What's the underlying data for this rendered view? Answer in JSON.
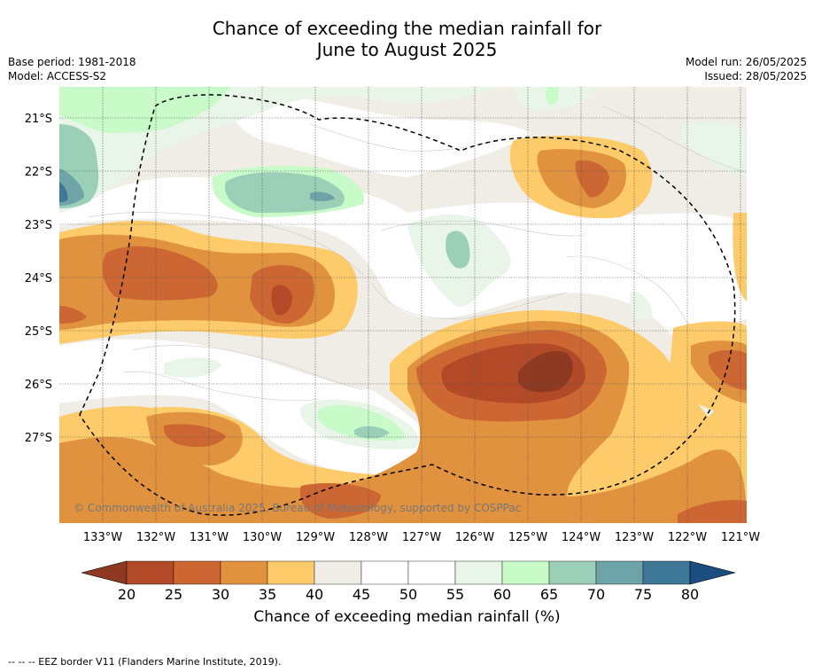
{
  "title": {
    "line1": "Chance of exceeding the median rainfall for",
    "line2": "June to August 2025"
  },
  "meta": {
    "base_period": "Base period: 1981-2018",
    "model": "Model: ACCESS-S2",
    "model_run": "Model run: 26/05/2025",
    "issued": "Issued: 28/05/2025"
  },
  "map": {
    "lat_labels": [
      "21°S",
      "22°S",
      "23°S",
      "24°S",
      "25°S",
      "26°S",
      "27°S"
    ],
    "lon_labels": [
      "133°W",
      "132°W",
      "131°W",
      "130°W",
      "129°W",
      "128°W",
      "127°W",
      "126°W",
      "125°W",
      "124°W",
      "123°W",
      "122°W",
      "121°W"
    ],
    "copyright": "© Commonwealth of Australia 2025, Bureau of Meteorology, supported by COSPPac"
  },
  "colorbar": {
    "ticks": [
      "20",
      "25",
      "30",
      "35",
      "40",
      "45",
      "50",
      "55",
      "60",
      "65",
      "70",
      "75",
      "80"
    ],
    "colors": [
      "#b24a28",
      "#cc6633",
      "#e0923f",
      "#fecb6a",
      "#f0ece6",
      "#ffffff",
      "#ffffff",
      "#e8f5e8",
      "#c8fbc8",
      "#9ccfb8",
      "#6ea3a8",
      "#3e7896"
    ],
    "under_color": "#8e3a22",
    "over_color": "#1a4d80",
    "label": "Chance of exceeding median rainfall (%)"
  },
  "footer": {
    "eez_note": "--  --  -- EEZ border V11 (Flanders Marine Institute, 2019)."
  }
}
